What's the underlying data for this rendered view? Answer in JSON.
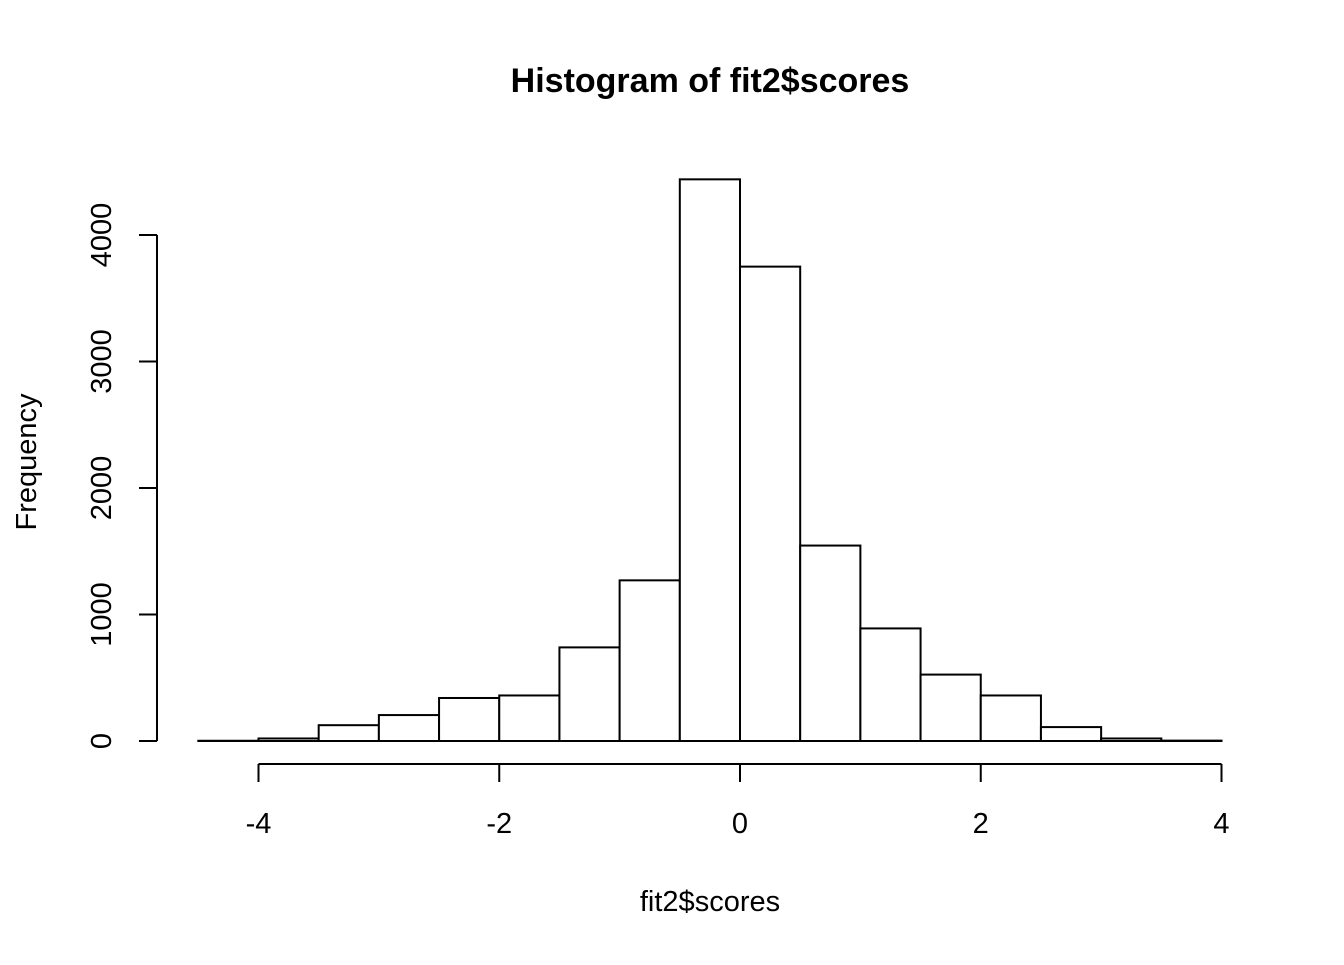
{
  "chart_data": {
    "type": "bar",
    "title": "Histogram of fit2$scores",
    "xlabel": "fit2$scores",
    "ylabel": "Frequency",
    "bin_edges": [
      -4.5,
      -4.0,
      -3.5,
      -3.0,
      -2.5,
      -2.0,
      -1.5,
      -1.0,
      -0.5,
      0.0,
      0.5,
      1.0,
      1.5,
      2.0,
      2.5,
      3.0,
      3.5,
      4.0
    ],
    "values": [
      2,
      20,
      125,
      205,
      340,
      360,
      740,
      1270,
      4440,
      3750,
      1545,
      890,
      525,
      360,
      110,
      20,
      3
    ],
    "xlim": [
      -4.5,
      4.0
    ],
    "ylim": [
      0,
      4440
    ],
    "x_ticks": [
      -4,
      -2,
      0,
      2,
      4
    ],
    "y_ticks": [
      0,
      1000,
      2000,
      3000,
      4000
    ],
    "x_tick_labels": [
      "-4",
      "-2",
      "0",
      "2",
      "4"
    ],
    "y_tick_labels": [
      "0",
      "1000",
      "2000",
      "3000",
      "4000"
    ],
    "bar_fill": "#ffffff",
    "bar_stroke": "#000000",
    "grid": false
  }
}
